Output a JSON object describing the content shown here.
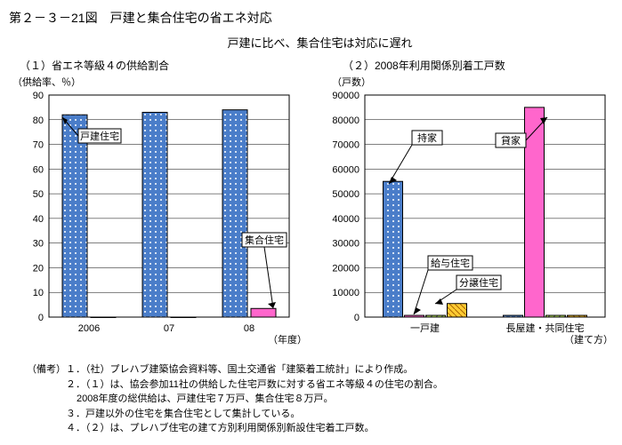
{
  "figure_title": "第２－３－21図　戸建と集合住宅の省エネ対応",
  "subtitle": "戸建に比べ、集合住宅は対応に遅れ",
  "chart1": {
    "title": "（１）省エネ等級４の供給割合",
    "ylabel": "（供給率、％）",
    "xlabel": "（年度）",
    "type": "bar",
    "categories": [
      "2006",
      "07",
      "08"
    ],
    "series": [
      {
        "name": "戸建住宅",
        "values": [
          82,
          83,
          84
        ],
        "fill": "#4a7dc9",
        "pattern": "dots"
      },
      {
        "name": "集合住宅",
        "values": [
          0,
          0,
          3.5
        ],
        "fill": "#ff66cc",
        "pattern": "solid"
      }
    ],
    "ylim": [
      0,
      90
    ],
    "ytick_step": 10,
    "detached_label": "戸建住宅",
    "shugo_label": "集合住宅",
    "border": "#000",
    "grid": "#000",
    "bg": "#fff"
  },
  "chart2": {
    "title": "（２）2008年利用関係別着工戸数",
    "ylabel": "（戸数）",
    "xlabel": "（建て方）",
    "type": "bar",
    "categories": [
      "一戸建",
      "長屋建・共同住宅"
    ],
    "series_labels": [
      "持家",
      "貸家",
      "給与住宅",
      "分譲住宅"
    ],
    "bars": [
      {
        "cat": 0,
        "values": [
          55000,
          700,
          700,
          5500
        ],
        "colors": [
          "#4a7dc9",
          "#ff66cc",
          "#ccff66",
          "#ffcc33"
        ],
        "patterns": [
          "dots",
          "solid",
          "diag",
          "diag2"
        ]
      },
      {
        "cat": 1,
        "values": [
          700,
          85000,
          700,
          700
        ],
        "colors": [
          "#4a7dc9",
          "#ff66cc",
          "#ccff66",
          "#ffcc33"
        ],
        "patterns": [
          "dots",
          "solid",
          "diag",
          "diag2"
        ]
      }
    ],
    "annotations": {
      "mochiie": "持家",
      "kashiya": "貸家",
      "kyuyo": "給与住宅",
      "bunjo": "分譲住宅"
    },
    "ylim": [
      0,
      90000
    ],
    "ytick_step": 10000,
    "border": "#000",
    "grid": "#000",
    "bg": "#fff"
  },
  "notes": {
    "lead": "（備考）",
    "n1": "１．（社）プレハブ建築協会資料等、国土交通省「建築着工統計」により作成。",
    "n2": "２．（１）は、協会参加11社の供給した住宅戸数に対する省エネ等級４の住宅の割合。",
    "n2b": "2008年度の総供給は、戸建住宅７万戸、集合住宅８万戸。",
    "n3": "３．戸建以外の住宅を集合住宅として集計している。",
    "n4": "４．（２）は、プレハブ住宅の建て方別利用関係別新設住宅着工戸数。"
  }
}
